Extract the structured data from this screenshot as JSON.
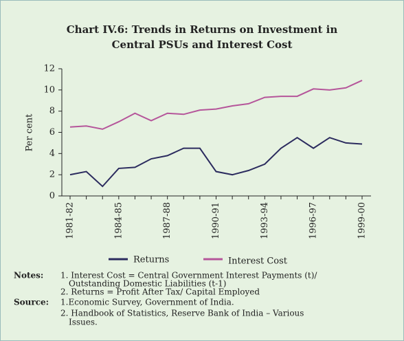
{
  "chart_data": {
    "type": "line",
    "title": [
      "Chart IV.6: Trends in Returns on Investment in",
      "Central PSUs and Interest Cost"
    ],
    "y_label": "Per cent",
    "categories": [
      "1981-82",
      null,
      null,
      "1984-85",
      null,
      null,
      "1987-88",
      null,
      null,
      "1990-91",
      null,
      null,
      "1993-94",
      null,
      null,
      "1996-97",
      null,
      null,
      "1999-00"
    ],
    "series": [
      {
        "name": "Returns",
        "color": "#2b2b5e",
        "values": [
          2.0,
          2.3,
          0.9,
          2.6,
          2.7,
          3.5,
          3.8,
          4.5,
          4.5,
          2.3,
          2.0,
          2.4,
          3.0,
          4.5,
          5.5,
          4.5,
          5.5,
          5.0,
          4.9
        ]
      },
      {
        "name": "Interest Cost",
        "color": "#b5559a",
        "values": [
          6.5,
          6.6,
          6.3,
          7.0,
          7.8,
          7.1,
          7.8,
          7.7,
          8.1,
          8.2,
          8.5,
          8.7,
          9.3,
          9.4,
          9.4,
          10.1,
          10.0,
          10.2,
          10.9
        ]
      }
    ],
    "ylim": [
      0,
      12
    ],
    "yticks": [
      0,
      2,
      4,
      6,
      8,
      10,
      12
    ],
    "grid": false,
    "notes_label": "Notes:",
    "notes": [
      "1. Interest Cost = Central Government Interest Payments (t)/",
      "Outstanding Domestic Liabilities (t-1)",
      "2. Returns = Profit After Tax/ Capital Employed"
    ],
    "source_label": "Source:",
    "sources": [
      "1.Economic Survey, Government of India.",
      "2. Handbook of Statistics, Reserve Bank of India – Various",
      "Issues."
    ]
  }
}
